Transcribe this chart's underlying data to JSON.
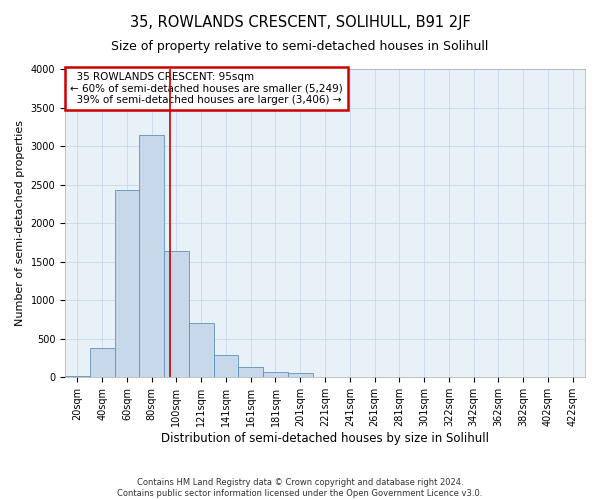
{
  "title": "35, ROWLANDS CRESCENT, SOLIHULL, B91 2JF",
  "subtitle": "Size of property relative to semi-detached houses in Solihull",
  "xlabel": "Distribution of semi-detached houses by size in Solihull",
  "ylabel": "Number of semi-detached properties",
  "footnote": "Contains HM Land Registry data © Crown copyright and database right 2024.\nContains public sector information licensed under the Open Government Licence v3.0.",
  "bar_labels": [
    "20sqm",
    "40sqm",
    "60sqm",
    "80sqm",
    "100sqm",
    "121sqm",
    "141sqm",
    "161sqm",
    "181sqm",
    "201sqm",
    "221sqm",
    "241sqm",
    "261sqm",
    "281sqm",
    "301sqm",
    "322sqm",
    "342sqm",
    "362sqm",
    "382sqm",
    "402sqm",
    "422sqm"
  ],
  "bar_values": [
    20,
    380,
    2430,
    3140,
    1640,
    700,
    290,
    130,
    70,
    55,
    0,
    0,
    0,
    0,
    0,
    0,
    0,
    0,
    0,
    0,
    0
  ],
  "bar_color": "#c8d8eb",
  "bar_edge_color": "#6090b8",
  "vline_color": "#cc0000",
  "annotation_box_edge_color": "#cc0000",
  "smaller_pct": 60,
  "smaller_count": 5249,
  "larger_pct": 39,
  "larger_count": 3406,
  "annotation_title": "35 ROWLANDS CRESCENT: 95sqm",
  "ylim": [
    0,
    4000
  ],
  "yticks": [
    0,
    500,
    1000,
    1500,
    2000,
    2500,
    3000,
    3500,
    4000
  ],
  "grid_color": "#c8d8eb",
  "bg_color": "#e8f0f8",
  "title_fontsize": 10.5,
  "subtitle_fontsize": 9,
  "xlabel_fontsize": 8.5,
  "ylabel_fontsize": 8,
  "tick_fontsize": 7,
  "annot_fontsize": 7.5,
  "footnote_fontsize": 6
}
